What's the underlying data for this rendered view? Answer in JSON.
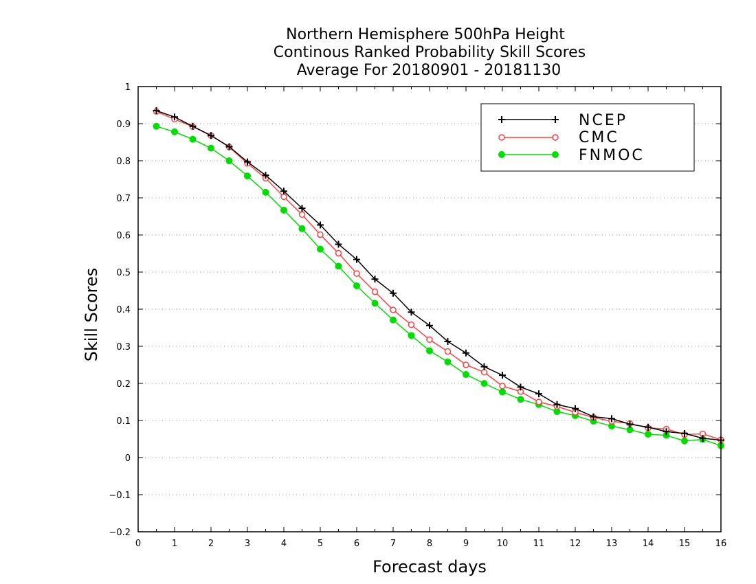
{
  "chart_data": {
    "type": "line",
    "title_lines": [
      "Northern Hemisphere 500hPa Height",
      "Continous Ranked Probability Skill Scores",
      "Average For 20180901 - 20181130"
    ],
    "xlabel": "Forecast days",
    "ylabel": "Skill Scores",
    "xlim": [
      0,
      16
    ],
    "ylim": [
      -0.2,
      1
    ],
    "x_ticks": [
      "0",
      "1",
      "2",
      "3",
      "4",
      "5",
      "6",
      "7",
      "8",
      "9",
      "10",
      "11",
      "12",
      "13",
      "14",
      "15",
      "16"
    ],
    "y_ticks": [
      "−0.2",
      "−0.1",
      "0",
      "0.1",
      "0.2",
      "0.3",
      "0.4",
      "0.5",
      "0.6",
      "0.7",
      "0.8",
      "0.9",
      "1"
    ],
    "y_tick_values": [
      -0.2,
      -0.1,
      0,
      0.1,
      0.2,
      0.3,
      0.4,
      0.5,
      0.6,
      0.7,
      0.8,
      0.9,
      1.0
    ],
    "grid": "dotted-horizontal",
    "legend_position": "top-right",
    "x": [
      0.5,
      1,
      1.5,
      2,
      2.5,
      3,
      3.5,
      4,
      4.5,
      5,
      5.5,
      6,
      6.5,
      7,
      7.5,
      8,
      8.5,
      9,
      9.5,
      10,
      10.5,
      11,
      11.5,
      12,
      12.5,
      13,
      13.5,
      14,
      14.5,
      15,
      15.5,
      16
    ],
    "series": [
      {
        "name": "NCEP",
        "color": "#000000",
        "marker": "plus",
        "values": [
          0.935,
          0.918,
          0.893,
          0.868,
          0.838,
          0.797,
          0.761,
          0.718,
          0.672,
          0.627,
          0.575,
          0.534,
          0.481,
          0.443,
          0.392,
          0.356,
          0.313,
          0.282,
          0.245,
          0.222,
          0.19,
          0.172,
          0.143,
          0.132,
          0.11,
          0.105,
          0.09,
          0.082,
          0.07,
          0.065,
          0.052,
          0.047
        ]
      },
      {
        "name": "CMC",
        "color": "#ff4040",
        "marker": "open-circle",
        "values": [
          0.933,
          0.912,
          0.892,
          0.868,
          0.837,
          0.793,
          0.753,
          0.703,
          0.655,
          0.601,
          0.551,
          0.496,
          0.447,
          0.398,
          0.358,
          0.318,
          0.286,
          0.25,
          0.23,
          0.193,
          0.178,
          0.15,
          0.138,
          0.122,
          0.108,
          0.098,
          0.092,
          0.08,
          0.077,
          0.062,
          0.064,
          0.048
        ]
      },
      {
        "name": "FNMOC",
        "color": "#00dd00",
        "marker": "filled-circle",
        "values": [
          0.893,
          0.878,
          0.858,
          0.834,
          0.8,
          0.759,
          0.715,
          0.667,
          0.617,
          0.562,
          0.516,
          0.463,
          0.416,
          0.371,
          0.329,
          0.288,
          0.258,
          0.224,
          0.2,
          0.177,
          0.157,
          0.143,
          0.124,
          0.113,
          0.098,
          0.085,
          0.075,
          0.063,
          0.06,
          0.045,
          0.049,
          0.032
        ]
      }
    ]
  }
}
